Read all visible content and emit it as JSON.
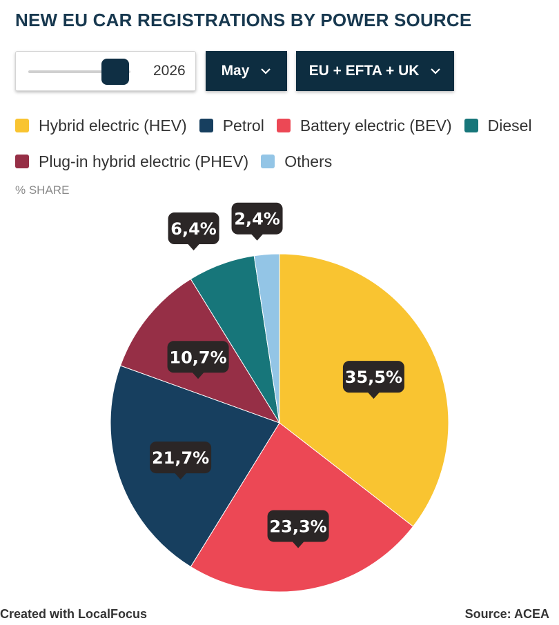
{
  "title": "NEW EU CAR REGISTRATIONS BY POWER SOURCE",
  "controls": {
    "year_value": "2026",
    "year_slider_level": 0.85,
    "month_label": "May",
    "region_label": "EU + EFTA + UK"
  },
  "axis_note": "% SHARE",
  "footer": {
    "credit": "Created with LocalFocus",
    "source": "Source: ACEA"
  },
  "icons": {
    "dropdown_chevron": "chevron-down-icon"
  },
  "chart_data": {
    "type": "pie",
    "unit": "%",
    "slices": [
      {
        "name": "Hybrid electric (HEV)",
        "value": 35.5,
        "label": "35,5%",
        "color": "#f9c431"
      },
      {
        "name": "Battery electric (BEV)",
        "value": 23.3,
        "label": "23,3%",
        "color": "#ec4855"
      },
      {
        "name": "Petrol",
        "value": 21.7,
        "label": "21,7%",
        "color": "#173f5f"
      },
      {
        "name": "Plug-in hybrid electric (PHEV)",
        "value": 10.7,
        "label": "10,7%",
        "color": "#962f46"
      },
      {
        "name": "Diesel",
        "value": 6.4,
        "label": "6,4%",
        "color": "#17767a"
      },
      {
        "name": "Others",
        "value": 2.4,
        "label": "2,4%",
        "color": "#93c5e6"
      }
    ],
    "legend": [
      {
        "name": "Hybrid electric (HEV)",
        "color": "#f9c431"
      },
      {
        "name": "Petrol",
        "color": "#173f5f"
      },
      {
        "name": "Battery electric (BEV)",
        "color": "#ec4855"
      },
      {
        "name": "Diesel",
        "color": "#17767a"
      },
      {
        "name": "Plug-in hybrid electric (PHEV)",
        "color": "#962f46"
      },
      {
        "name": "Others",
        "color": "#93c5e6"
      }
    ],
    "legend_position": "top",
    "start_angle": "12 o'clock",
    "direction": "clockwise"
  }
}
